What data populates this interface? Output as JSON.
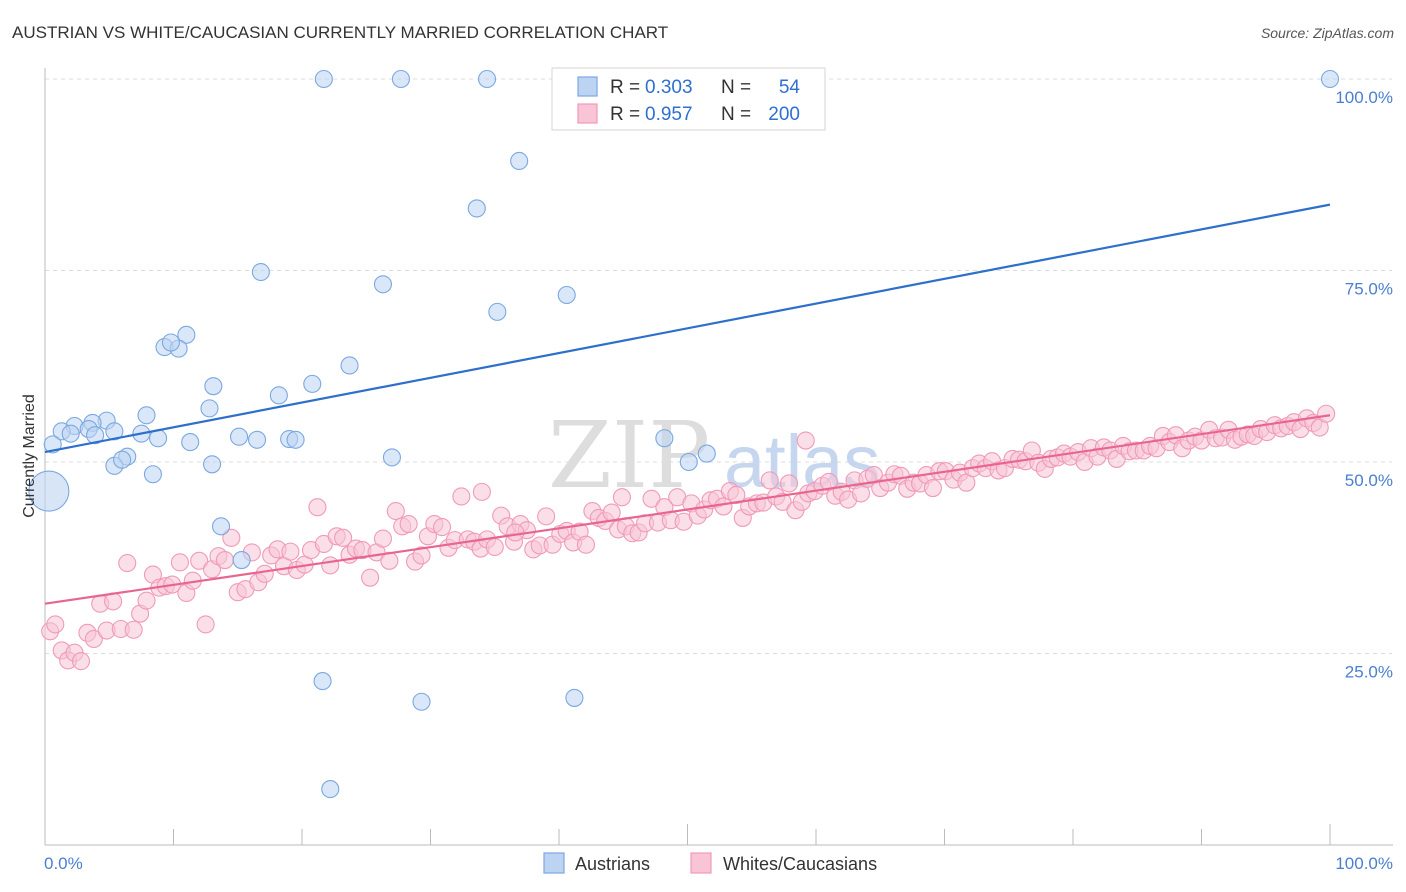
{
  "chart_data": {
    "type": "scatter",
    "title": "AUSTRIAN VS WHITE/CAUCASIAN CURRENTLY MARRIED CORRELATION CHART",
    "source": "Source: ZipAtlas.com",
    "ylabel": "Currently Married",
    "watermark": {
      "part1": "ZIP",
      "part2": "atlas"
    },
    "xlim": [
      0,
      100
    ],
    "ylim": [
      0,
      100
    ],
    "x_tick_labels": {
      "left": "0.0%",
      "right": "100.0%"
    },
    "y_ticks": [
      {
        "value": 25,
        "label": "25.0%"
      },
      {
        "value": 50,
        "label": "50.0%"
      },
      {
        "value": 75,
        "label": "75.0%"
      },
      {
        "value": 100,
        "label": "100.0%"
      }
    ],
    "legend": {
      "r_label": "R =",
      "n_label": "N =",
      "items": [
        {
          "name": "Austrians",
          "r": "0.303",
          "n": "54"
        },
        {
          "name": "Whites/Caucasians",
          "r": "0.957",
          "n": "200"
        }
      ]
    },
    "series": [
      {
        "name": "Austrians",
        "color": "#7aa8e0",
        "fill": "#bcd4f2",
        "line_color": "#2d6fcb",
        "trend": {
          "x": [
            0,
            100
          ],
          "y": [
            51.3,
            83.6
          ]
        },
        "large_point": {
          "x": 0.3,
          "y": 46.2
        },
        "points": [
          [
            21.7,
            100
          ],
          [
            27.7,
            100
          ],
          [
            34.4,
            100
          ],
          [
            100,
            100
          ],
          [
            36.9,
            89.3
          ],
          [
            33.6,
            83.1
          ],
          [
            16.8,
            74.8
          ],
          [
            26.3,
            73.2
          ],
          [
            40.6,
            71.8
          ],
          [
            35.2,
            69.6
          ],
          [
            11.0,
            66.6
          ],
          [
            9.3,
            65.0
          ],
          [
            10.4,
            64.8
          ],
          [
            9.8,
            65.6
          ],
          [
            23.7,
            62.6
          ],
          [
            20.8,
            60.2
          ],
          [
            13.1,
            59.9
          ],
          [
            18.2,
            58.7
          ],
          [
            12.8,
            57.0
          ],
          [
            7.9,
            56.1
          ],
          [
            4.8,
            55.4
          ],
          [
            3.7,
            55.1
          ],
          [
            2.3,
            54.7
          ],
          [
            3.4,
            54.3
          ],
          [
            1.3,
            54.0
          ],
          [
            2.0,
            53.7
          ],
          [
            5.4,
            54.0
          ],
          [
            7.5,
            53.7
          ],
          [
            3.9,
            53.5
          ],
          [
            11.3,
            52.6
          ],
          [
            15.1,
            53.3
          ],
          [
            16.5,
            52.9
          ],
          [
            19.0,
            53.0
          ],
          [
            19.5,
            52.9
          ],
          [
            8.8,
            53.1
          ],
          [
            0.6,
            52.3
          ],
          [
            48.2,
            53.1
          ],
          [
            51.5,
            51.1
          ],
          [
            6.4,
            50.7
          ],
          [
            5.4,
            49.5
          ],
          [
            6.0,
            50.3
          ],
          [
            13.0,
            49.7
          ],
          [
            50.1,
            50.0
          ],
          [
            27.0,
            50.6
          ],
          [
            8.4,
            48.4
          ],
          [
            13.7,
            41.6
          ],
          [
            15.3,
            37.2
          ],
          [
            21.6,
            21.4
          ],
          [
            29.3,
            18.7
          ],
          [
            41.2,
            19.2
          ],
          [
            22.2,
            7.3
          ]
        ]
      },
      {
        "name": "Whites/Caucasians",
        "color": "#f09ab8",
        "fill": "#f8c4d6",
        "line_color": "#e8658f",
        "trend": {
          "x": [
            0,
            100
          ],
          "y": [
            31.5,
            56.1
          ]
        },
        "points": [
          [
            0.4,
            27.9
          ],
          [
            0.8,
            28.8
          ],
          [
            1.3,
            25.4
          ],
          [
            1.8,
            24.1
          ],
          [
            2.3,
            25.1
          ],
          [
            2.8,
            24.0
          ],
          [
            3.3,
            27.7
          ],
          [
            3.8,
            26.9
          ],
          [
            4.3,
            31.5
          ],
          [
            4.8,
            28.0
          ],
          [
            5.3,
            31.8
          ],
          [
            5.9,
            28.2
          ],
          [
            6.4,
            36.8
          ],
          [
            6.9,
            28.1
          ],
          [
            7.4,
            30.2
          ],
          [
            7.9,
            31.9
          ],
          [
            8.4,
            35.3
          ],
          [
            8.9,
            33.6
          ],
          [
            9.4,
            33.8
          ],
          [
            9.9,
            34.0
          ],
          [
            10.5,
            36.9
          ],
          [
            11.0,
            32.9
          ],
          [
            11.5,
            34.5
          ],
          [
            12.0,
            37.1
          ],
          [
            12.5,
            28.8
          ],
          [
            13.0,
            36.0
          ],
          [
            13.5,
            37.7
          ],
          [
            14.0,
            37.2
          ],
          [
            14.5,
            40.1
          ],
          [
            15.0,
            33.0
          ],
          [
            15.6,
            33.4
          ],
          [
            16.1,
            38.2
          ],
          [
            16.6,
            34.3
          ],
          [
            17.1,
            35.4
          ],
          [
            17.6,
            37.8
          ],
          [
            18.1,
            38.6
          ],
          [
            18.6,
            36.4
          ],
          [
            19.1,
            38.3
          ],
          [
            19.6,
            35.9
          ],
          [
            20.2,
            36.6
          ],
          [
            20.7,
            38.5
          ],
          [
            21.2,
            44.1
          ],
          [
            21.7,
            39.3
          ],
          [
            22.2,
            36.5
          ],
          [
            22.7,
            40.3
          ],
          [
            23.2,
            40.1
          ],
          [
            23.7,
            37.9
          ],
          [
            24.2,
            38.7
          ],
          [
            24.7,
            38.5
          ],
          [
            25.3,
            34.9
          ],
          [
            25.8,
            38.2
          ],
          [
            26.3,
            40.0
          ],
          [
            26.8,
            37.1
          ],
          [
            27.3,
            43.6
          ],
          [
            27.8,
            41.6
          ],
          [
            28.3,
            41.9
          ],
          [
            28.8,
            37.0
          ],
          [
            29.3,
            37.8
          ],
          [
            29.8,
            40.3
          ],
          [
            30.3,
            41.9
          ],
          [
            30.9,
            41.5
          ],
          [
            31.4,
            38.8
          ],
          [
            31.9,
            39.8
          ],
          [
            32.4,
            45.5
          ],
          [
            32.9,
            39.9
          ],
          [
            33.4,
            39.6
          ],
          [
            33.9,
            38.7
          ],
          [
            34.4,
            39.9
          ],
          [
            35.0,
            38.9
          ],
          [
            35.5,
            43.0
          ],
          [
            36.0,
            41.6
          ],
          [
            36.5,
            39.6
          ],
          [
            37.0,
            41.9
          ],
          [
            37.5,
            41.1
          ],
          [
            38.0,
            38.6
          ],
          [
            38.5,
            39.1
          ],
          [
            39.0,
            42.9
          ],
          [
            39.5,
            39.2
          ],
          [
            40.1,
            40.6
          ],
          [
            40.6,
            41.0
          ],
          [
            41.1,
            39.5
          ],
          [
            41.6,
            40.9
          ],
          [
            42.1,
            39.2
          ],
          [
            42.6,
            43.6
          ],
          [
            43.1,
            42.7
          ],
          [
            43.6,
            42.3
          ],
          [
            44.1,
            43.4
          ],
          [
            44.6,
            41.2
          ],
          [
            45.2,
            41.6
          ],
          [
            45.7,
            40.7
          ],
          [
            46.2,
            40.8
          ],
          [
            46.7,
            42.0
          ],
          [
            47.2,
            45.2
          ],
          [
            47.7,
            42.1
          ],
          [
            48.2,
            44.1
          ],
          [
            48.7,
            42.4
          ],
          [
            49.2,
            45.4
          ],
          [
            49.7,
            42.2
          ],
          [
            50.3,
            44.6
          ],
          [
            50.8,
            43.0
          ],
          [
            51.3,
            43.8
          ],
          [
            51.8,
            45.0
          ],
          [
            52.3,
            45.2
          ],
          [
            52.8,
            44.2
          ],
          [
            53.3,
            46.2
          ],
          [
            53.8,
            45.7
          ],
          [
            54.3,
            42.7
          ],
          [
            54.8,
            44.2
          ],
          [
            55.4,
            44.6
          ],
          [
            55.9,
            44.7
          ],
          [
            56.4,
            47.6
          ],
          [
            56.9,
            45.5
          ],
          [
            57.4,
            44.8
          ],
          [
            57.9,
            47.2
          ],
          [
            58.4,
            43.7
          ],
          [
            58.9,
            44.8
          ],
          [
            59.4,
            45.9
          ],
          [
            59.9,
            46.2
          ],
          [
            60.5,
            46.9
          ],
          [
            61.0,
            47.4
          ],
          [
            61.5,
            45.6
          ],
          [
            62.0,
            46.1
          ],
          [
            62.5,
            45.1
          ],
          [
            63.0,
            47.6
          ],
          [
            63.5,
            45.9
          ],
          [
            64.0,
            47.8
          ],
          [
            64.5,
            48.3
          ],
          [
            65.0,
            46.6
          ],
          [
            65.6,
            47.3
          ],
          [
            66.1,
            48.4
          ],
          [
            66.6,
            48.2
          ],
          [
            67.1,
            46.5
          ],
          [
            67.6,
            47.3
          ],
          [
            68.1,
            47.2
          ],
          [
            68.6,
            48.3
          ],
          [
            69.1,
            46.6
          ],
          [
            69.6,
            48.8
          ],
          [
            70.1,
            48.8
          ],
          [
            70.7,
            47.7
          ],
          [
            71.2,
            48.6
          ],
          [
            71.7,
            47.3
          ],
          [
            72.2,
            49.2
          ],
          [
            72.7,
            49.8
          ],
          [
            73.2,
            49.2
          ],
          [
            73.7,
            50.1
          ],
          [
            74.2,
            48.9
          ],
          [
            74.7,
            49.2
          ],
          [
            75.3,
            50.4
          ],
          [
            75.8,
            50.3
          ],
          [
            76.3,
            50.1
          ],
          [
            76.8,
            51.5
          ],
          [
            77.3,
            49.9
          ],
          [
            77.8,
            49.1
          ],
          [
            78.3,
            50.4
          ],
          [
            78.8,
            50.6
          ],
          [
            79.3,
            51.1
          ],
          [
            79.8,
            50.7
          ],
          [
            80.4,
            51.3
          ],
          [
            80.9,
            50.0
          ],
          [
            81.4,
            51.8
          ],
          [
            81.9,
            50.7
          ],
          [
            82.4,
            51.9
          ],
          [
            82.9,
            51.5
          ],
          [
            83.4,
            50.4
          ],
          [
            83.9,
            52.1
          ],
          [
            84.4,
            51.4
          ],
          [
            84.9,
            51.5
          ],
          [
            85.5,
            51.5
          ],
          [
            86.0,
            52.1
          ],
          [
            86.5,
            51.8
          ],
          [
            87.0,
            53.4
          ],
          [
            87.5,
            52.6
          ],
          [
            88.0,
            53.5
          ],
          [
            88.5,
            51.8
          ],
          [
            89.0,
            52.8
          ],
          [
            89.5,
            53.3
          ],
          [
            90.0,
            52.8
          ],
          [
            90.6,
            54.2
          ],
          [
            91.1,
            53.1
          ],
          [
            91.6,
            53.2
          ],
          [
            92.1,
            54.2
          ],
          [
            92.6,
            52.9
          ],
          [
            93.1,
            53.3
          ],
          [
            93.6,
            53.6
          ],
          [
            94.1,
            53.4
          ],
          [
            94.6,
            54.3
          ],
          [
            95.1,
            53.9
          ],
          [
            95.7,
            54.8
          ],
          [
            96.2,
            54.4
          ],
          [
            96.7,
            54.7
          ],
          [
            97.2,
            55.2
          ],
          [
            97.7,
            54.3
          ],
          [
            98.2,
            55.7
          ],
          [
            98.7,
            55.1
          ],
          [
            99.2,
            54.5
          ],
          [
            99.7,
            56.3
          ],
          [
            59.2,
            52.8
          ],
          [
            36.6,
            40.8
          ],
          [
            34.0,
            46.1
          ],
          [
            44.9,
            45.4
          ]
        ]
      }
    ]
  }
}
